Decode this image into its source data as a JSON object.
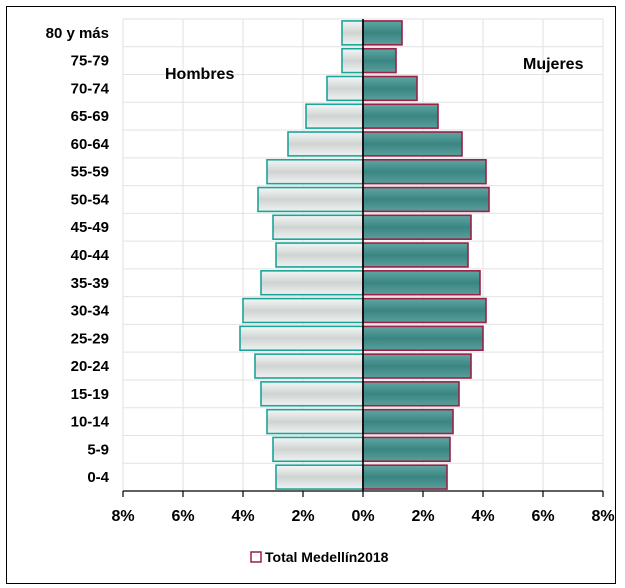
{
  "chart_data": {
    "type": "bar",
    "orientation": "horizontal",
    "style": "population-pyramid",
    "categories": [
      "80 y más",
      "75-79",
      "70-74",
      "65-69",
      "60-64",
      "55-59",
      "50-54",
      "45-49",
      "40-44",
      "35-39",
      "30-34",
      "25-29",
      "20-24",
      "15-19",
      "10-14",
      "5-9",
      "0-4"
    ],
    "series": [
      {
        "name": "Hombres",
        "side": "left",
        "color": "#d8dcdb",
        "edge": "#1aa598",
        "values": [
          0.7,
          0.7,
          1.2,
          1.9,
          2.5,
          3.2,
          3.5,
          3.0,
          2.9,
          3.4,
          4.0,
          4.1,
          3.6,
          3.4,
          3.2,
          3.0,
          2.9
        ]
      },
      {
        "name": "Mujeres",
        "side": "right",
        "color": "#3f8b88",
        "edge": "#9a2147",
        "values": [
          1.3,
          1.1,
          1.8,
          2.5,
          3.3,
          4.1,
          4.2,
          3.6,
          3.5,
          3.9,
          4.1,
          4.0,
          3.6,
          3.2,
          3.0,
          2.9,
          2.8
        ]
      }
    ],
    "side_labels": {
      "left": "Hombres",
      "right": "Mujeres"
    },
    "xlim": [
      -8,
      8
    ],
    "xticks": [
      -8,
      -6,
      -4,
      -2,
      0,
      2,
      4,
      6,
      8
    ],
    "xtick_labels": [
      "8%",
      "6%",
      "4%",
      "2%",
      "0%",
      "2%",
      "4%",
      "6%",
      "8%"
    ],
    "grid": true,
    "legend": {
      "label": "Total Medellín2018",
      "position": "bottom",
      "marker_color": "#9a2147"
    }
  }
}
